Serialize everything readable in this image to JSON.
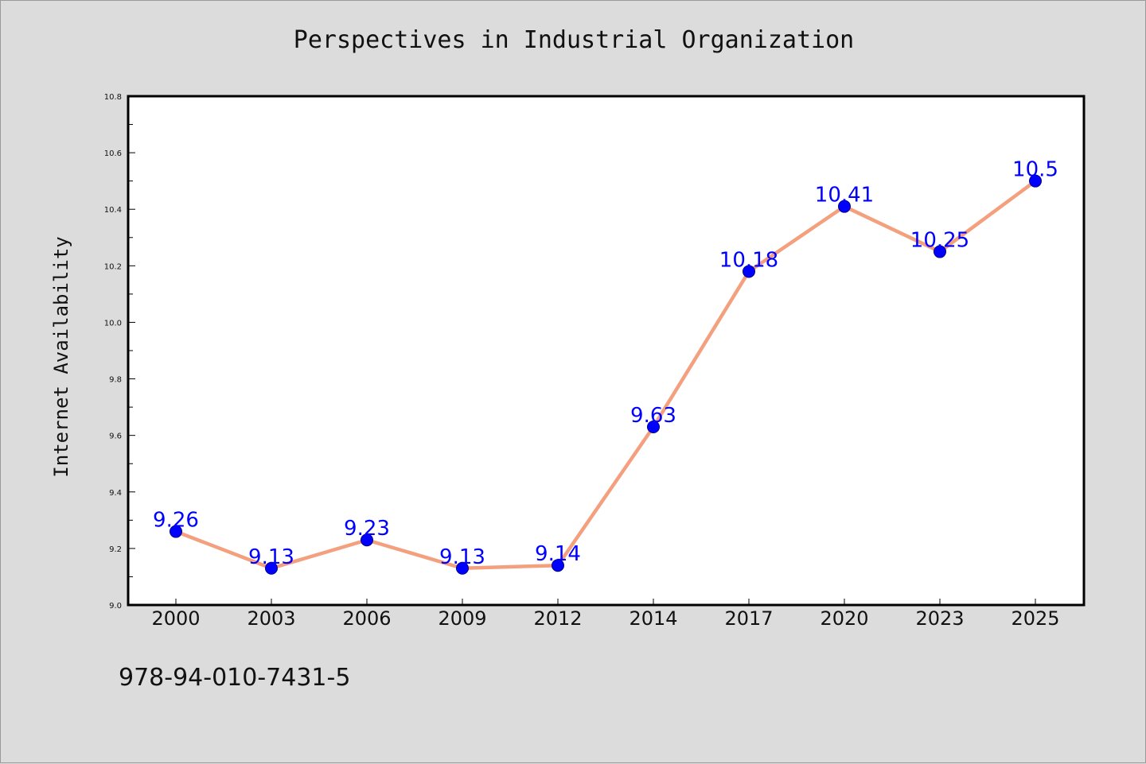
{
  "chart_data": {
    "type": "line",
    "title": "Perspectives in Industrial Organization",
    "xlabel": "",
    "ylabel": "Internet Availability",
    "categories": [
      "2000",
      "2003",
      "2006",
      "2009",
      "2012",
      "2014",
      "2017",
      "2020",
      "2023",
      "2025"
    ],
    "series": [
      {
        "values": [
          9.26,
          9.13,
          9.23,
          9.13,
          9.14,
          9.63,
          10.18,
          10.41,
          10.25,
          10.5
        ],
        "labels": [
          "9.26",
          "9.13",
          "9.23",
          "9.13",
          "9.14",
          "9.63",
          "10.18",
          "10.41",
          "10.25",
          "10.5"
        ],
        "line_color": "#f4a07e",
        "marker_color": "#0000ff"
      }
    ],
    "ylim": [
      9.0,
      10.8
    ],
    "yticks": [
      "9.0",
      "9.2",
      "9.4",
      "9.6",
      "9.8",
      "10.0",
      "10.2",
      "10.4",
      "10.6",
      "10.8"
    ],
    "grid": false,
    "legend": "none"
  },
  "footer": {
    "code": "978-94-010-7431-5"
  },
  "colors": {
    "background": "#dcdcdc",
    "plot_area": "#ffffff",
    "data_label": "#0000ff"
  }
}
